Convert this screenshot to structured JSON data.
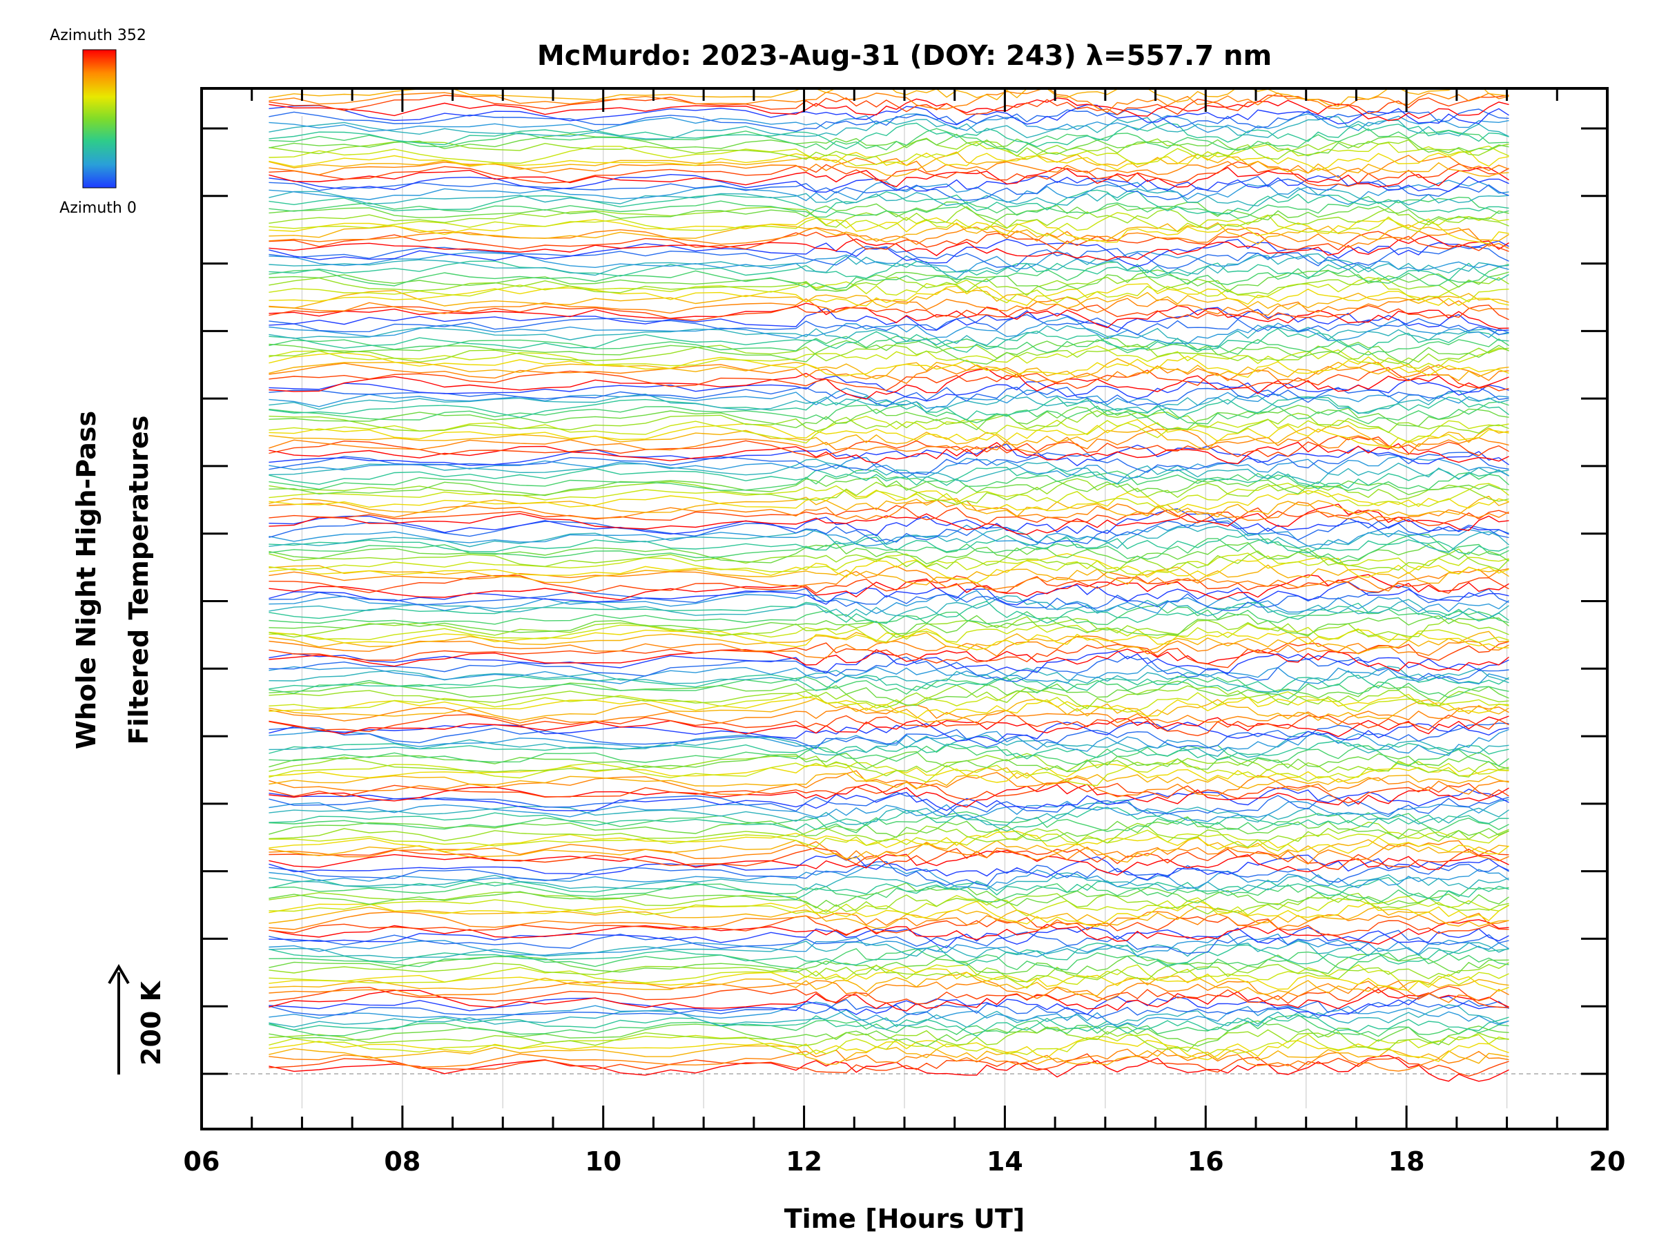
{
  "chart_data": {
    "type": "line",
    "title": "McMurdo: 2023-Aug-31 (DOY: 243) λ=557.7 nm",
    "xlabel": "Time [Hours UT]",
    "ylabel_line1": "Whole Night High-Pass",
    "ylabel_line2": "Filtered Temperatures",
    "scale_label": "200 K",
    "xlim": [
      6,
      20
    ],
    "xticks": [
      "06",
      "08",
      "10",
      "12",
      "14",
      "16",
      "18",
      "20"
    ],
    "x_major_values": [
      6,
      8,
      10,
      12,
      14,
      16,
      18,
      20
    ],
    "y_offset_ticks": 15,
    "time_range": [
      6.67,
      19.08
    ],
    "series_count": 200,
    "azimuth_range": [
      0,
      352
    ],
    "grid": true,
    "colorbar": {
      "top_label": "Azimuth 352",
      "bottom_label": "Azimuth 0",
      "colors": [
        "#ff0000",
        "#ff8c00",
        "#e8e800",
        "#7fdc2a",
        "#2ecc8a",
        "#2aa0d8",
        "#1e3cff"
      ]
    }
  }
}
